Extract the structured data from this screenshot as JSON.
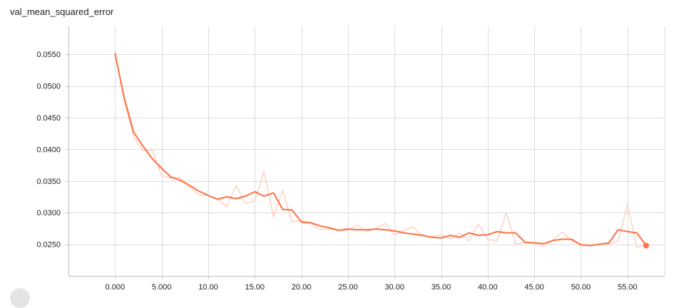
{
  "chart_data": {
    "type": "line",
    "title": "val_mean_squared_error",
    "xlabel": "",
    "ylabel": "",
    "xlim": [
      -5,
      59
    ],
    "ylim": [
      0.02,
      0.0594
    ],
    "x_ticks": [
      0,
      5,
      10,
      15,
      20,
      25,
      30,
      35,
      40,
      45,
      50,
      55
    ],
    "x_tick_labels": [
      "0.000",
      "5.000",
      "10.00",
      "15.00",
      "20.00",
      "25.00",
      "30.00",
      "35.00",
      "40.00",
      "45.00",
      "50.00",
      "55.00"
    ],
    "y_ticks": [
      0.025,
      0.03,
      0.035,
      0.04,
      0.045,
      0.05,
      0.055
    ],
    "y_tick_labels": [
      "0.0250",
      "0.0300",
      "0.0350",
      "0.0400",
      "0.0450",
      "0.0500",
      "0.0550"
    ],
    "grid": true,
    "colors": {
      "smoothed": "#ff7043",
      "raw": "#ffccbc",
      "grid": "#dddddd",
      "axis": "#bdbdbd"
    },
    "series": [
      {
        "role": "raw",
        "x": [
          0,
          1,
          2,
          3,
          4,
          5,
          6,
          7,
          8,
          9,
          10,
          11,
          12,
          13,
          14,
          15,
          16,
          17,
          18,
          19,
          20,
          21,
          22,
          23,
          24,
          25,
          26,
          27,
          28,
          29,
          30,
          31,
          32,
          33,
          34,
          35,
          36,
          37,
          38,
          39,
          40,
          41,
          42,
          43,
          44,
          45,
          46,
          47,
          48,
          49,
          50,
          51,
          52,
          53,
          54,
          55,
          56,
          57
        ],
        "values": [
          0.0551,
          0.0475,
          0.042,
          0.0398,
          0.0398,
          0.0358,
          0.0355,
          0.0355,
          0.034,
          0.0328,
          0.0327,
          0.0322,
          0.0309,
          0.0343,
          0.0314,
          0.0319,
          0.0365,
          0.0293,
          0.0335,
          0.0285,
          0.0288,
          0.0283,
          0.0273,
          0.0274,
          0.0272,
          0.0272,
          0.028,
          0.027,
          0.0275,
          0.0283,
          0.0265,
          0.0272,
          0.0277,
          0.0263,
          0.0262,
          0.0265,
          0.0258,
          0.0268,
          0.0255,
          0.0282,
          0.0257,
          0.0256,
          0.03,
          0.025,
          0.0253,
          0.0253,
          0.0246,
          0.0257,
          0.0269,
          0.0256,
          0.025,
          0.0248,
          0.025,
          0.025,
          0.0255,
          0.0312,
          0.0245,
          0.0248
        ]
      },
      {
        "role": "smoothed",
        "x": [
          0,
          1,
          2,
          3,
          4,
          5,
          6,
          7,
          8,
          9,
          10,
          11,
          12,
          13,
          14,
          15,
          16,
          17,
          18,
          19,
          20,
          21,
          22,
          23,
          24,
          25,
          26,
          27,
          28,
          29,
          30,
          31,
          32,
          33,
          34,
          35,
          36,
          37,
          38,
          39,
          40,
          41,
          42,
          43,
          44,
          45,
          46,
          47,
          48,
          49,
          50,
          51,
          52,
          53,
          54,
          55,
          56,
          57
        ],
        "values": [
          0.0551,
          0.048,
          0.0427,
          0.0405,
          0.0385,
          0.037,
          0.0356,
          0.0351,
          0.0343,
          0.0334,
          0.0327,
          0.0321,
          0.0325,
          0.0322,
          0.0326,
          0.0333,
          0.0326,
          0.0331,
          0.0305,
          0.0304,
          0.0285,
          0.0284,
          0.0279,
          0.0276,
          0.0272,
          0.0274,
          0.0273,
          0.0273,
          0.0274,
          0.0273,
          0.0271,
          0.0268,
          0.0266,
          0.0264,
          0.0261,
          0.026,
          0.0264,
          0.0261,
          0.0268,
          0.0264,
          0.0265,
          0.027,
          0.0268,
          0.0268,
          0.0253,
          0.0252,
          0.0251,
          0.0256,
          0.0258,
          0.0258,
          0.0249,
          0.0248,
          0.025,
          0.0252,
          0.0273,
          0.027,
          0.0268,
          0.0248
        ]
      }
    ]
  }
}
